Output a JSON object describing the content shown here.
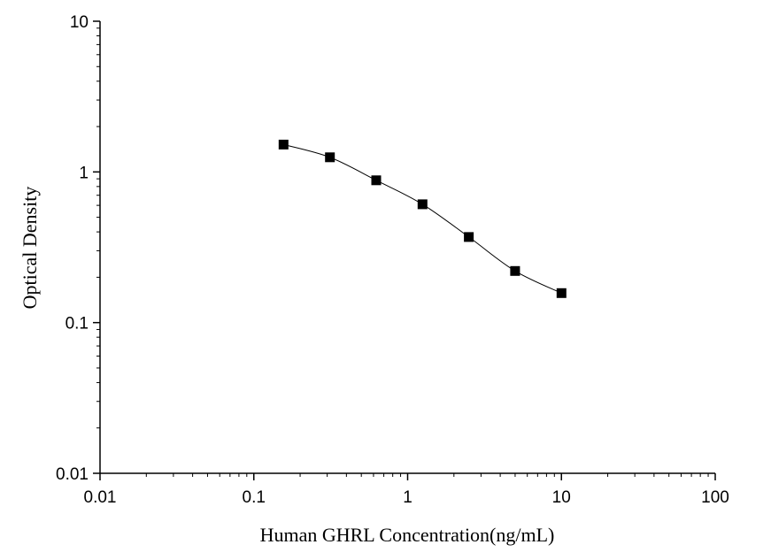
{
  "chart_data": {
    "type": "scatter",
    "title": "",
    "xlabel": "Human GHRL Concentration(ng/mL)",
    "ylabel": "Optical Density",
    "x_scale": "log",
    "y_scale": "log",
    "xlim": [
      0.01,
      100
    ],
    "ylim": [
      0.01,
      10
    ],
    "x_ticks": [
      "0.01",
      "0.1",
      "1",
      "10",
      "100"
    ],
    "y_ticks": [
      "0.01",
      "0.1",
      "1",
      "10"
    ],
    "grid": false,
    "legend": "none",
    "marker": "filled-square",
    "line": "smooth curve through points",
    "series": [
      {
        "x": [
          0.156,
          0.3125,
          0.625,
          1.25,
          2.5,
          5,
          10
        ],
        "y": [
          1.52,
          1.25,
          0.88,
          0.61,
          0.37,
          0.22,
          0.157
        ]
      }
    ],
    "colors": {
      "line": "#000000",
      "marker": "#000000",
      "axis": "#000000"
    }
  }
}
